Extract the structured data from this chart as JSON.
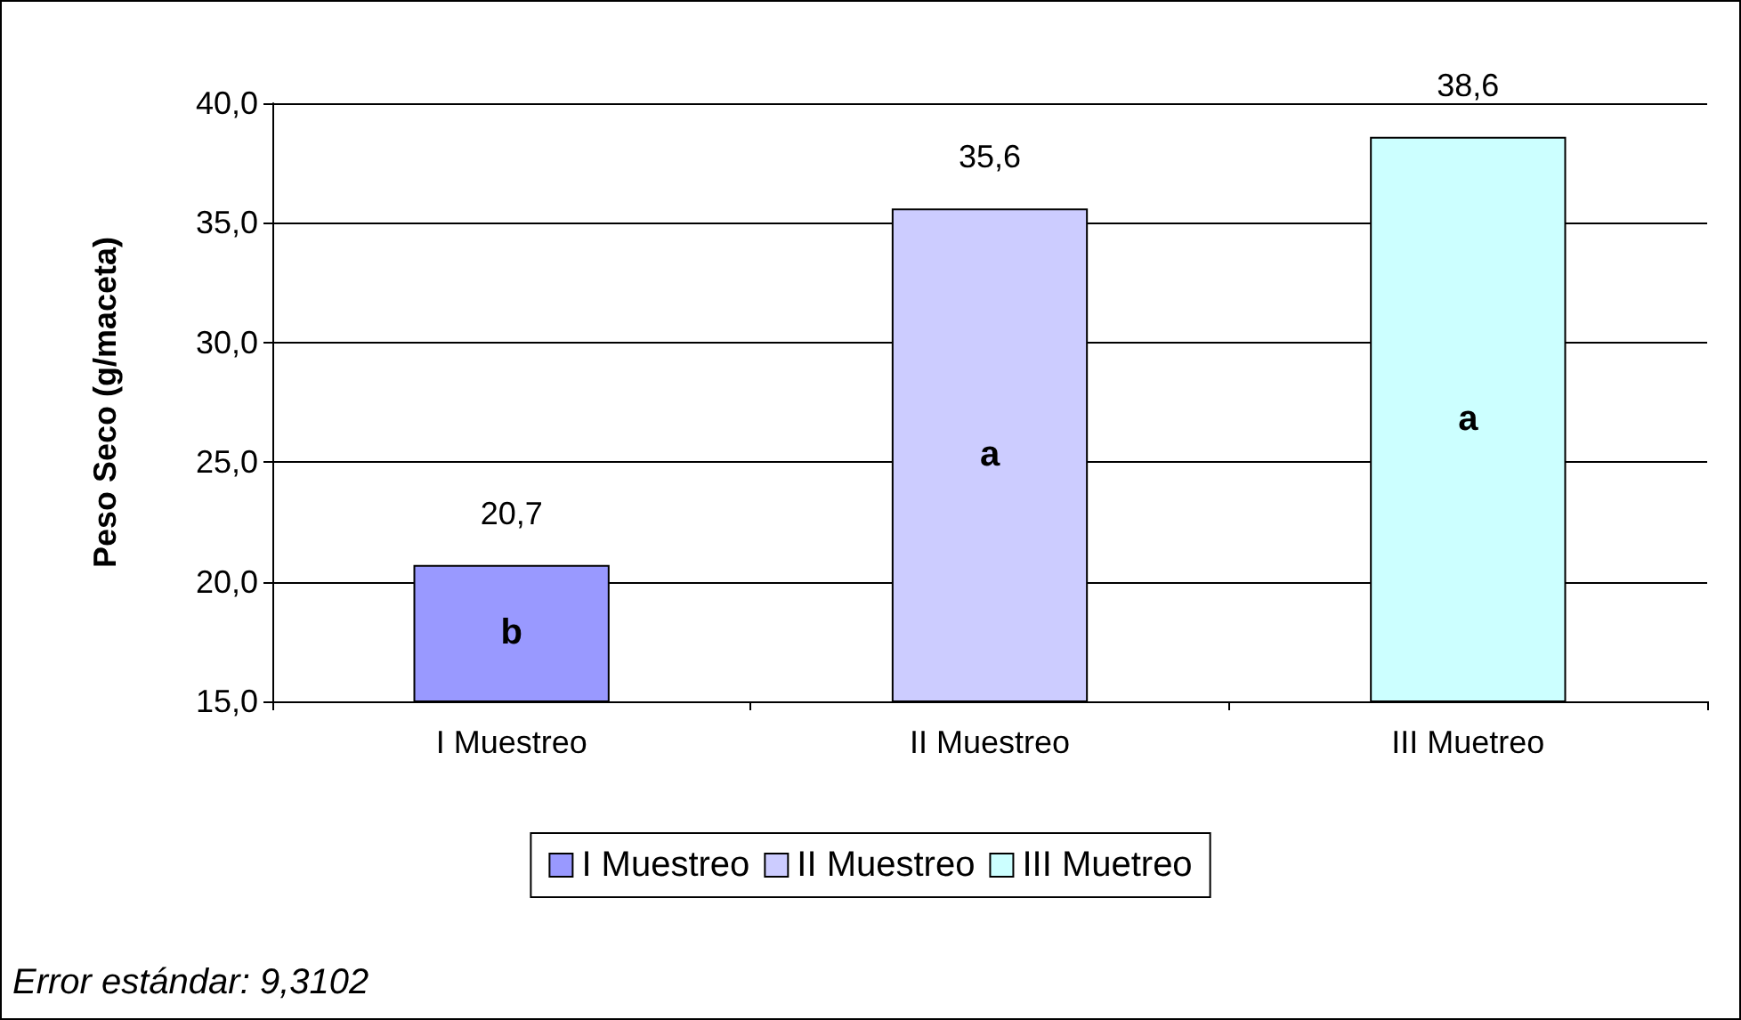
{
  "chart_data": {
    "type": "bar",
    "ylabel": "Peso Seco (g/maceta)",
    "categories": [
      "I Muestreo",
      "II Muestreo",
      "III Muetreo"
    ],
    "series": [
      {
        "name": "I Muestreo",
        "color": "#9999ff",
        "values": [
          20.7,
          null,
          null
        ],
        "value_labels": [
          "20,7",
          null,
          null
        ]
      },
      {
        "name": "II Muestreo",
        "color": "#ccccff",
        "values": [
          null,
          35.6,
          null
        ],
        "value_labels": [
          null,
          "35,6",
          null
        ]
      },
      {
        "name": "III Muetreo",
        "color": "#ccffff",
        "values": [
          null,
          null,
          38.6
        ],
        "value_labels": [
          null,
          null,
          "38,6"
        ]
      }
    ],
    "stacked": true,
    "ylim": [
      15,
      40
    ],
    "yticks": [
      {
        "value": 15,
        "label": "15,0"
      },
      {
        "value": 20,
        "label": "20,0"
      },
      {
        "value": 25,
        "label": "25,0"
      },
      {
        "value": 30,
        "label": "30,0"
      },
      {
        "value": 35,
        "label": "35,0"
      },
      {
        "value": 40,
        "label": "40,0"
      }
    ],
    "grid": "y",
    "legend": "bottom",
    "annotations": [
      "b",
      "a",
      "a",
      "Error estándar: 9,3102"
    ]
  }
}
